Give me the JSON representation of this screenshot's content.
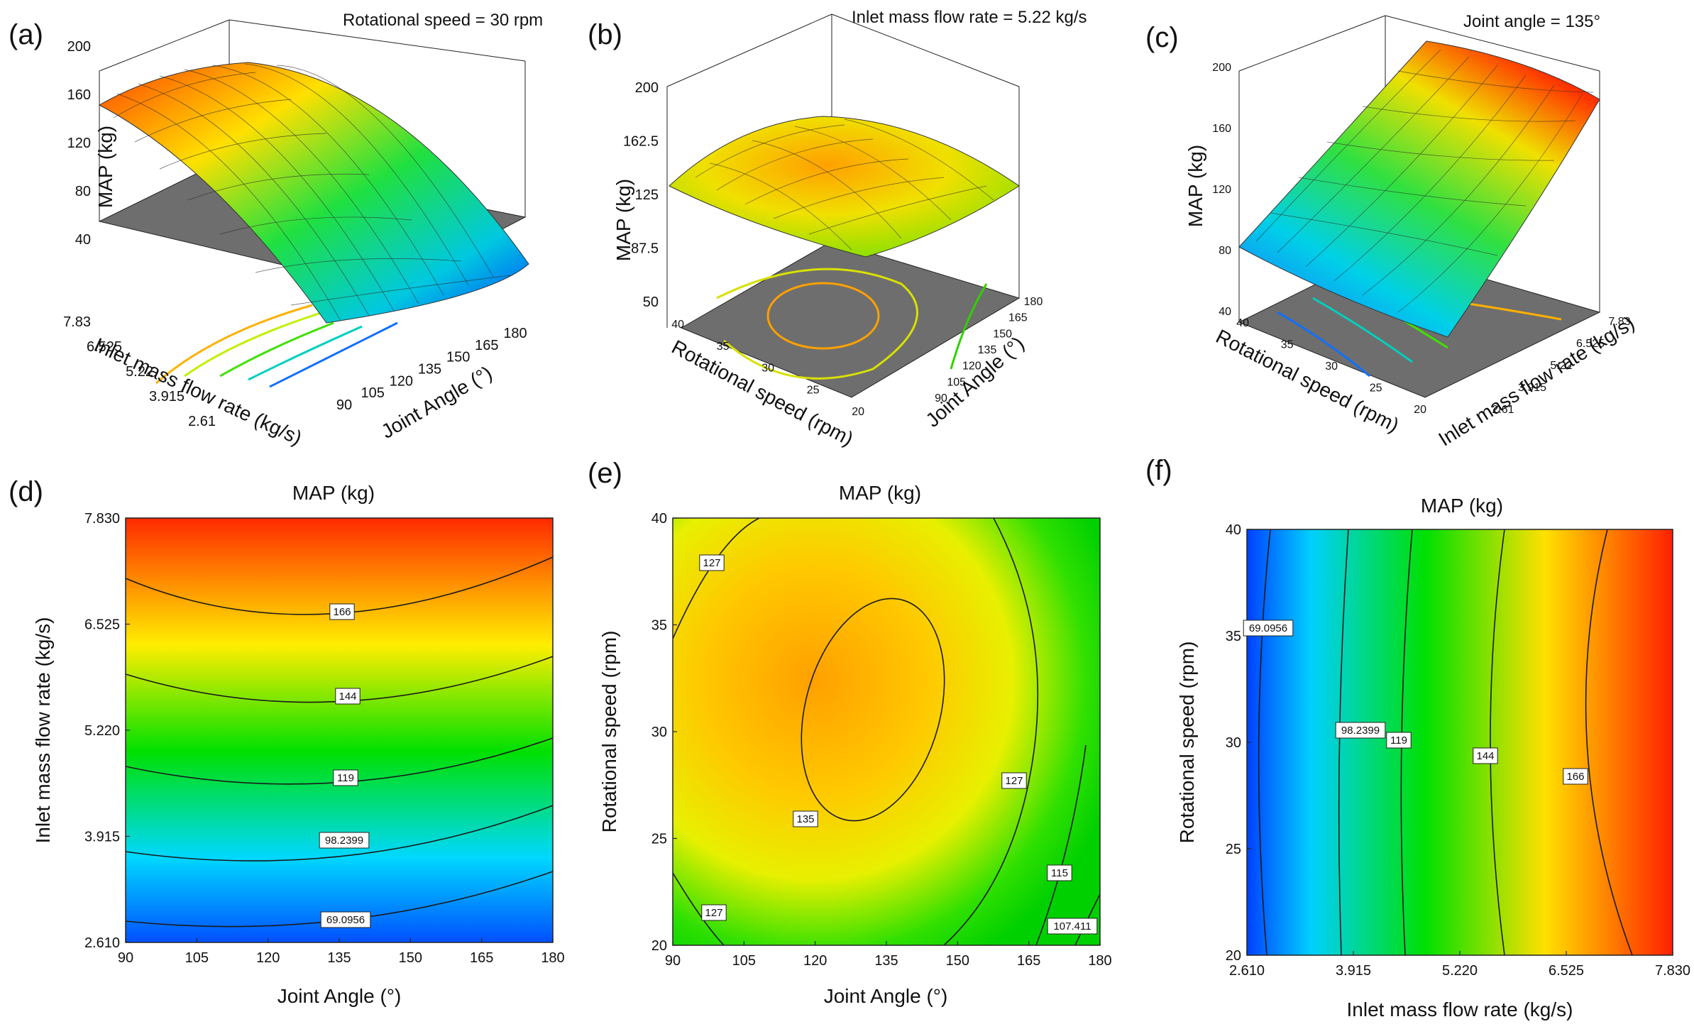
{
  "panels": [
    {
      "id": "a",
      "letter": "(a)",
      "title": "Rotational speed = 30 rpm"
    },
    {
      "id": "b",
      "letter": "(b)",
      "title": "Inlet mass flow rate = 5.22 kg/s"
    },
    {
      "id": "c",
      "letter": "(c)",
      "title": "Joint angle = 135°"
    },
    {
      "id": "d",
      "letter": "(d)",
      "title": "MAP (kg)"
    },
    {
      "id": "e",
      "letter": "(e)",
      "title": "MAP (kg)"
    },
    {
      "id": "f",
      "letter": "(f)",
      "title": "MAP (kg)"
    }
  ],
  "colors": {
    "low": "#0040ff",
    "mid": "#00e000",
    "high": "#ff2000",
    "floor": "#6e6e6e"
  },
  "chart_data": [
    {
      "id": "a",
      "type": "surface3d",
      "title": "Rotational speed = 30 rpm",
      "xlabel": "Joint Angle (°)",
      "ylabel": "Inlet mass flow rate (kg/s)",
      "zlabel": "MAP (kg)",
      "x_ticks": [
        "90",
        "105",
        "120",
        "135",
        "150",
        "165",
        "180"
      ],
      "y_ticks": [
        "2.61",
        "3.915",
        "5.22",
        "6.525",
        "7.83"
      ],
      "z_ticks": [
        "40",
        "80",
        "120",
        "160",
        "200"
      ],
      "zlim": [
        20,
        200
      ],
      "xlim": [
        90,
        180
      ],
      "ylim": [
        2.61,
        7.83
      ],
      "fixed": "Rotational speed = 30 rpm"
    },
    {
      "id": "b",
      "type": "surface3d",
      "title": "Inlet mass flow rate = 5.22 kg/s",
      "xlabel": "Joint Angle (°)",
      "ylabel": "Rotational speed (rpm)",
      "zlabel": "MAP (kg)",
      "x_ticks": [
        "90",
        "105",
        "120",
        "135",
        "150",
        "165",
        "180"
      ],
      "y_ticks": [
        "20",
        "25",
        "30",
        "35",
        "40"
      ],
      "z_ticks": [
        "50",
        "87.5",
        "125",
        "162.5",
        "200"
      ],
      "zlim": [
        50,
        200
      ],
      "xlim": [
        90,
        180
      ],
      "ylim": [
        20,
        40
      ]
    },
    {
      "id": "c",
      "type": "surface3d",
      "title": "Joint angle = 135°",
      "xlabel": "Inlet mass flow rate (kg/s)",
      "ylabel": "Rotational speed (rpm)",
      "zlabel": "MAP (kg)",
      "x_ticks": [
        "2.61",
        "3.915",
        "5.22",
        "6.525",
        "7.83"
      ],
      "y_ticks": [
        "20",
        "25",
        "30",
        "35",
        "40"
      ],
      "z_ticks": [
        "40",
        "80",
        "120",
        "160",
        "200"
      ],
      "zlim": [
        40,
        200
      ],
      "xlim": [
        2.61,
        7.83
      ],
      "ylim": [
        20,
        40
      ]
    },
    {
      "id": "d",
      "type": "heatmap",
      "title": "MAP (kg)",
      "xlabel": "Joint Angle (°)",
      "ylabel": "Inlet mass flow rate (kg/s)",
      "x_ticks": [
        "90",
        "105",
        "120",
        "135",
        "150",
        "165",
        "180"
      ],
      "y_ticks": [
        "2.610",
        "3.915",
        "5.220",
        "6.525",
        "7.830"
      ],
      "xlim": [
        90,
        180
      ],
      "ylim": [
        2.61,
        7.83
      ],
      "contour_labels": [
        "166",
        "144",
        "119",
        "98.2399",
        "69.0956"
      ]
    },
    {
      "id": "e",
      "type": "heatmap",
      "title": "MAP (kg)",
      "xlabel": "Joint Angle (°)",
      "ylabel": "Rotational speed (rpm)",
      "x_ticks": [
        "90",
        "105",
        "120",
        "135",
        "150",
        "165",
        "180"
      ],
      "y_ticks": [
        "20",
        "25",
        "30",
        "35",
        "40"
      ],
      "xlim": [
        90,
        180
      ],
      "ylim": [
        20,
        40
      ],
      "contour_labels": [
        "127",
        "135",
        "127",
        "127",
        "115",
        "107.411"
      ]
    },
    {
      "id": "f",
      "type": "heatmap",
      "title": "MAP (kg)",
      "xlabel": "Inlet mass flow rate (kg/s)",
      "ylabel": "Rotational speed (rpm)",
      "x_ticks": [
        "2.610",
        "3.915",
        "5.220",
        "6.525",
        "7.830"
      ],
      "y_ticks": [
        "20",
        "25",
        "30",
        "35",
        "40"
      ],
      "xlim": [
        2.61,
        7.83
      ],
      "ylim": [
        20,
        40
      ],
      "contour_labels": [
        "69.0956",
        "98.2399",
        "119",
        "144",
        "166"
      ]
    }
  ]
}
